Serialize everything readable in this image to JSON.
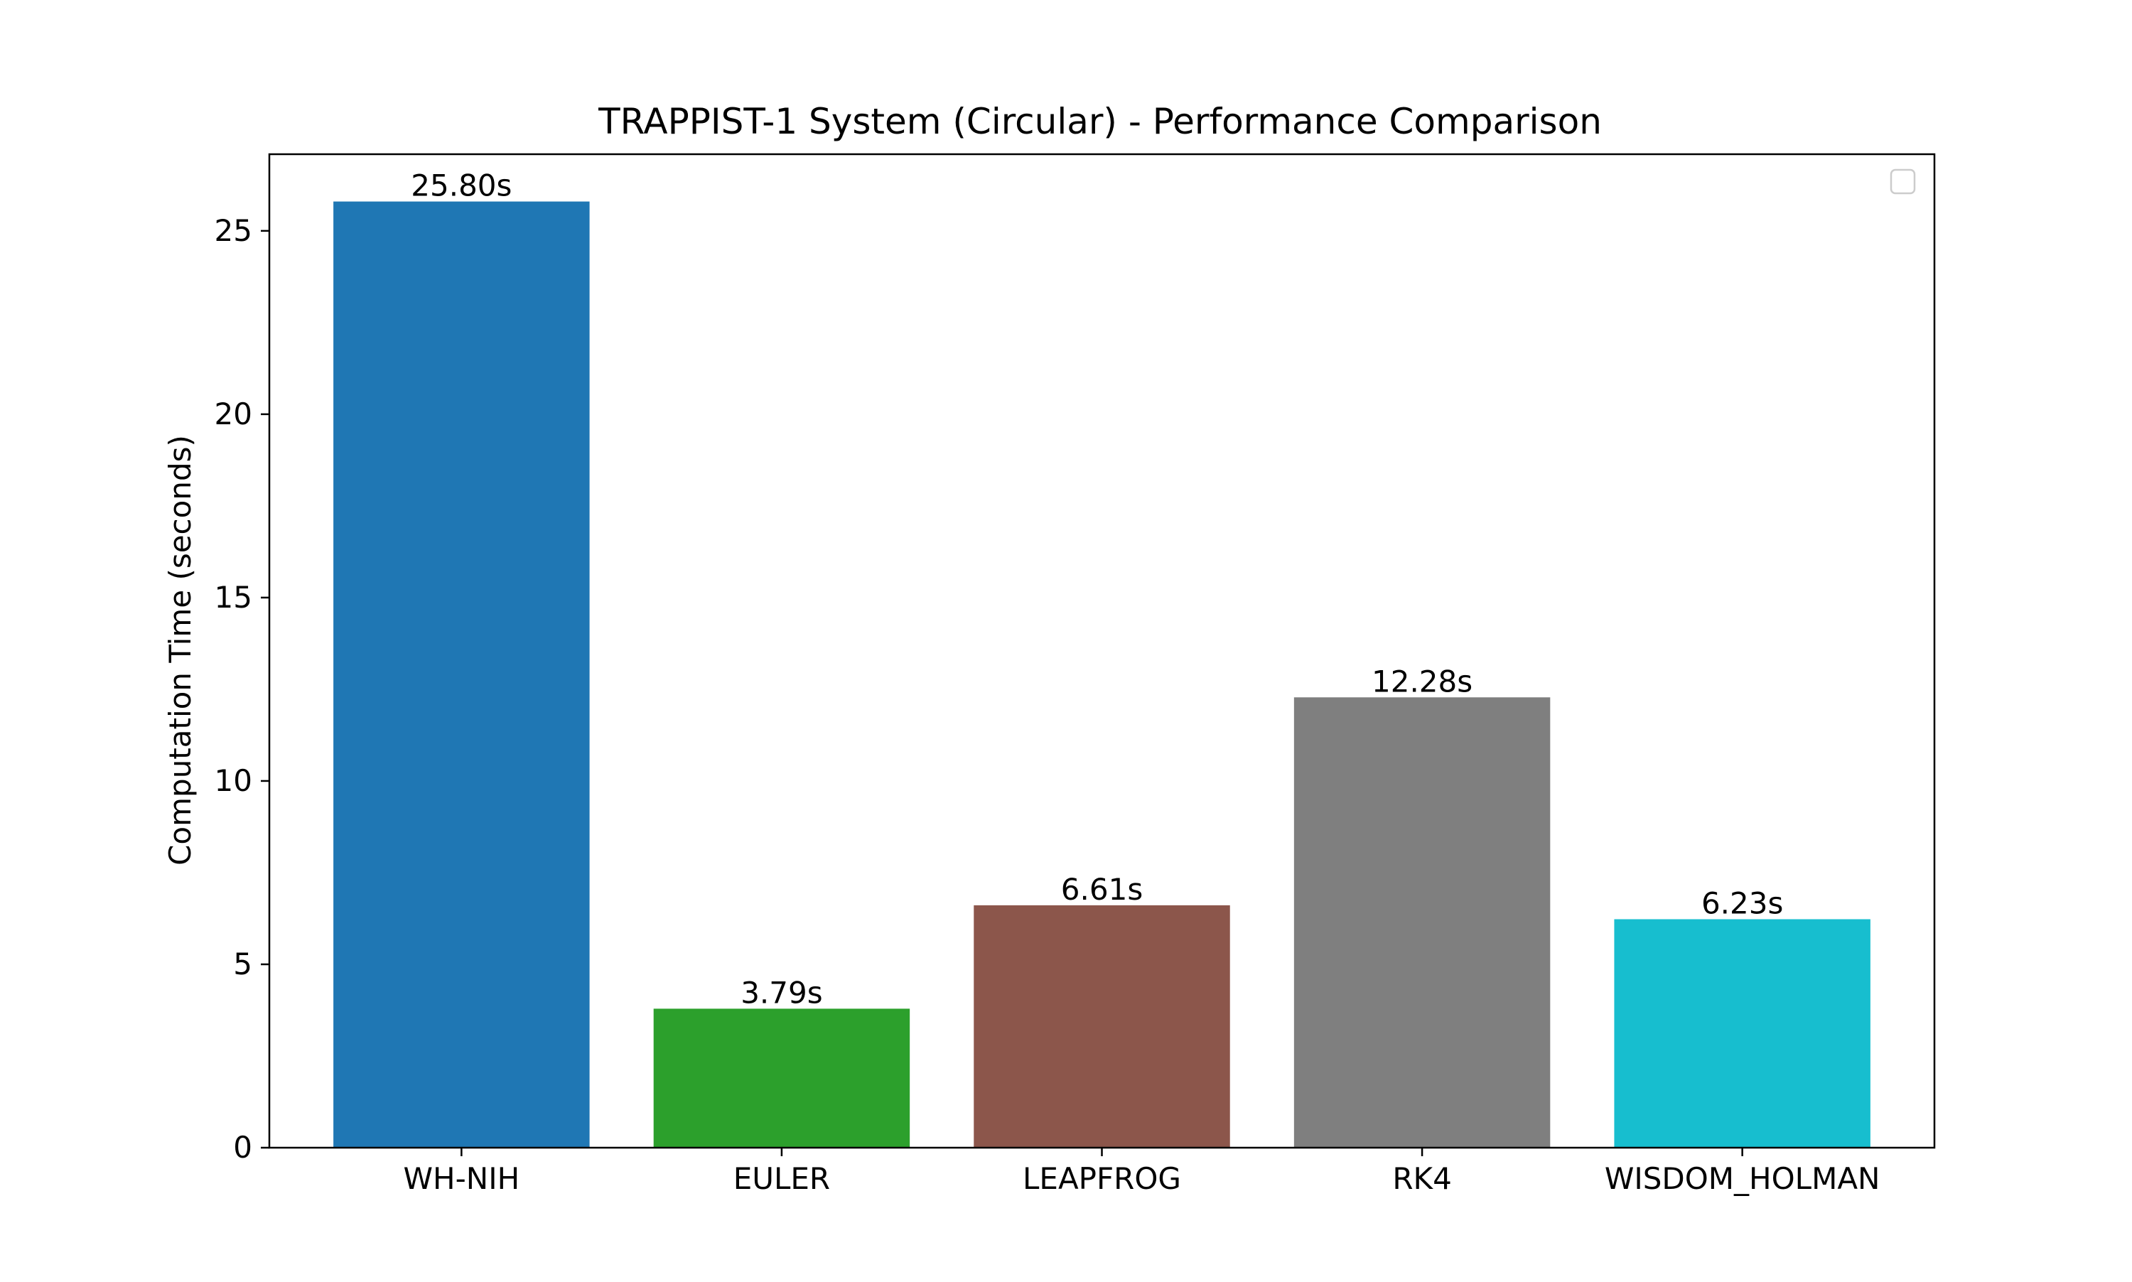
{
  "chart_data": {
    "type": "bar",
    "title": "TRAPPIST-1 System (Circular) - Performance Comparison",
    "xlabel": "",
    "ylabel": "Computation Time (seconds)",
    "categories": [
      "WH-NIH",
      "EULER",
      "LEAPFROG",
      "RK4",
      "WISDOM_HOLMAN"
    ],
    "values": [
      25.8,
      3.79,
      6.61,
      12.28,
      6.23
    ],
    "value_labels": [
      "25.80s",
      "3.79s",
      "6.61s",
      "12.28s",
      "6.23s"
    ],
    "colors": [
      "#1f77b4",
      "#2ca02c",
      "#8c564b",
      "#7f7f7f",
      "#17becf"
    ],
    "ylim": [
      0,
      27.09
    ],
    "yticks": [
      0,
      5,
      10,
      15,
      20,
      25
    ],
    "grid": false,
    "legend": {
      "placement": "upper-right",
      "entries": []
    }
  }
}
